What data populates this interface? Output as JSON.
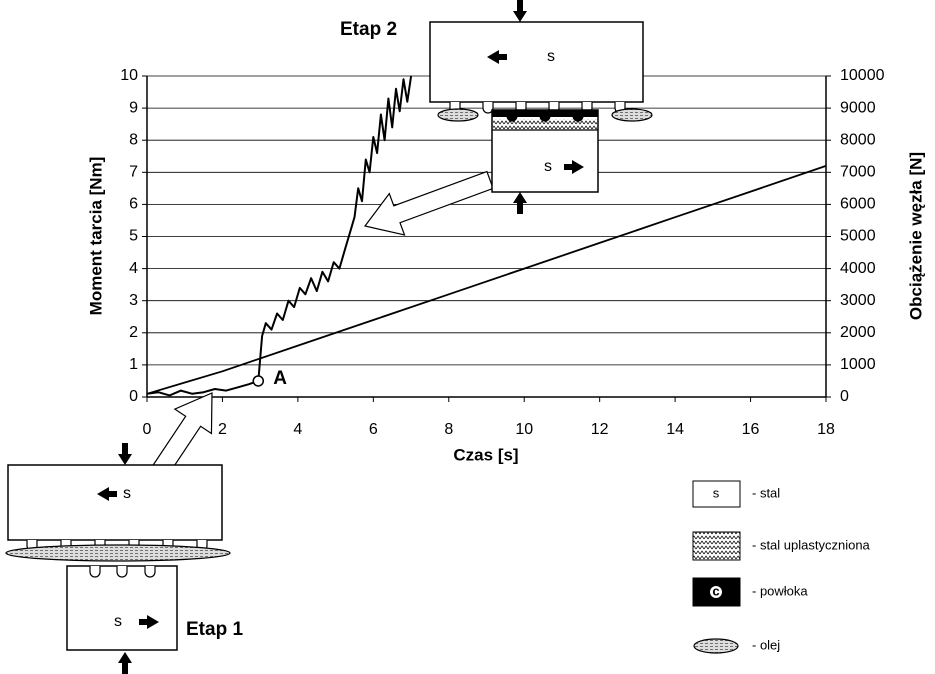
{
  "chart_data": {
    "type": "line",
    "x_label": "Czas [s]",
    "y_label": "Moment tarcia [Nm]",
    "y2_label": "Obciążenie węzła [N]",
    "xlim": [
      0,
      18
    ],
    "xticks": [
      0,
      2,
      4,
      6,
      8,
      10,
      12,
      14,
      16,
      18
    ],
    "ylim": [
      0,
      10
    ],
    "yticks": [
      0,
      1,
      2,
      3,
      4,
      5,
      6,
      7,
      8,
      9,
      10
    ],
    "y2lim": [
      0,
      10000
    ],
    "y2ticks": [
      0,
      1000,
      2000,
      3000,
      4000,
      5000,
      6000,
      7000,
      8000,
      9000,
      10000
    ],
    "grid": true,
    "series": [
      {
        "color": "#000000",
        "x": [
          0,
          0.3,
          0.6,
          0.9,
          1.2,
          1.5,
          1.8,
          2.1,
          2.4,
          2.7,
          2.95,
          3.0,
          3.05,
          3.15,
          3.3,
          3.45,
          3.6,
          3.75,
          3.9,
          4.05,
          4.2,
          4.35,
          4.5,
          4.65,
          4.8,
          4.95,
          5.1,
          5.25,
          5.4,
          5.5,
          5.6,
          5.7,
          5.8,
          5.9,
          6.0,
          6.1,
          6.2,
          6.3,
          6.4,
          6.5,
          6.6,
          6.7,
          6.8,
          6.9,
          7.0
        ],
        "values": [
          0.1,
          0.15,
          0.05,
          0.2,
          0.1,
          0.15,
          0.25,
          0.2,
          0.3,
          0.4,
          0.5,
          1.2,
          1.9,
          2.3,
          2.1,
          2.6,
          2.4,
          3.0,
          2.8,
          3.4,
          3.2,
          3.7,
          3.3,
          3.9,
          3.6,
          4.2,
          4.0,
          4.6,
          5.2,
          5.6,
          6.5,
          6.1,
          7.4,
          7.0,
          8.1,
          7.6,
          8.8,
          8.0,
          9.3,
          8.4,
          9.6,
          8.9,
          9.9,
          9.2,
          10
        ]
      },
      {
        "color": "#000000",
        "axis": "y2",
        "x": [
          0,
          2,
          4,
          6,
          8,
          10,
          12,
          14,
          16,
          18
        ],
        "values": [
          100,
          800,
          1600,
          2400,
          3200,
          4000,
          4800,
          5600,
          6400,
          7200
        ]
      }
    ],
    "annotations": {
      "point_label": "A",
      "point_index": 10,
      "stage_1": "Etap 1",
      "stage_2": "Etap 2",
      "steel_symbol": "s",
      "coating_symbol": "c",
      "legend": [
        "- stal",
        "- stal uplastyczniona",
        "- powłoka",
        "- olej"
      ]
    }
  }
}
